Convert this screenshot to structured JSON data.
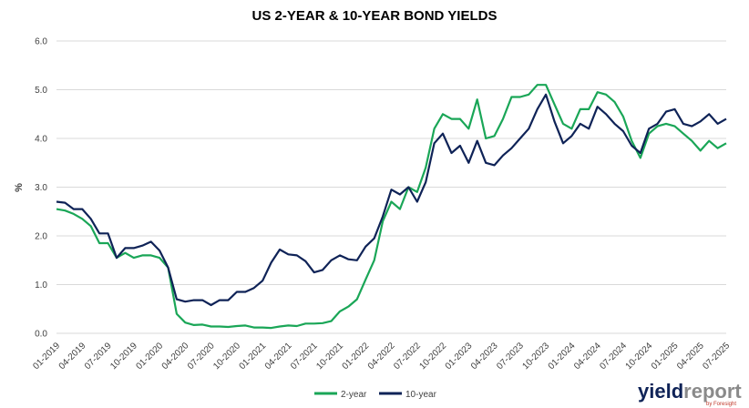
{
  "chart_data": {
    "type": "line",
    "title": "US 2-YEAR & 10-YEAR BOND YIELDS",
    "ylabel": "%",
    "xlabel": "",
    "ylim": [
      0,
      6
    ],
    "yticks": [
      "0.0",
      "1.0",
      "2.0",
      "3.0",
      "4.0",
      "5.0",
      "6.0"
    ],
    "xlim": [
      "2019-01",
      "2025-07"
    ],
    "xticks": [
      "01-2019",
      "04-2019",
      "07-2019",
      "10-2019",
      "01-2020",
      "04-2020",
      "07-2020",
      "10-2020",
      "01-2021",
      "04-2021",
      "07-2021",
      "10-2021",
      "01-2022",
      "04-2022",
      "07-2022",
      "10-2022",
      "01-2023",
      "04-2023",
      "07-2023",
      "10-2023",
      "01-2024",
      "04-2024",
      "07-2024",
      "10-2024",
      "01-2025",
      "04-2025",
      "07-2025"
    ],
    "grid": true,
    "legend": "bottom-center",
    "series": [
      {
        "name": "2-year",
        "color": "#1aa657",
        "points": [
          [
            "2019-01",
            2.55
          ],
          [
            "2019-02",
            2.52
          ],
          [
            "2019-03",
            2.45
          ],
          [
            "2019-04",
            2.35
          ],
          [
            "2019-05",
            2.2
          ],
          [
            "2019-06",
            1.85
          ],
          [
            "2019-07",
            1.85
          ],
          [
            "2019-08",
            1.55
          ],
          [
            "2019-09",
            1.65
          ],
          [
            "2019-10",
            1.55
          ],
          [
            "2019-11",
            1.6
          ],
          [
            "2019-12",
            1.6
          ],
          [
            "2020-01",
            1.55
          ],
          [
            "2020-02",
            1.35
          ],
          [
            "2020-03",
            0.4
          ],
          [
            "2020-04",
            0.22
          ],
          [
            "2020-05",
            0.17
          ],
          [
            "2020-06",
            0.18
          ],
          [
            "2020-07",
            0.14
          ],
          [
            "2020-08",
            0.14
          ],
          [
            "2020-09",
            0.13
          ],
          [
            "2020-10",
            0.15
          ],
          [
            "2020-11",
            0.16
          ],
          [
            "2020-12",
            0.12
          ],
          [
            "2021-01",
            0.12
          ],
          [
            "2021-02",
            0.11
          ],
          [
            "2021-03",
            0.14
          ],
          [
            "2021-04",
            0.16
          ],
          [
            "2021-05",
            0.15
          ],
          [
            "2021-06",
            0.2
          ],
          [
            "2021-07",
            0.2
          ],
          [
            "2021-08",
            0.21
          ],
          [
            "2021-09",
            0.25
          ],
          [
            "2021-10",
            0.45
          ],
          [
            "2021-11",
            0.55
          ],
          [
            "2021-12",
            0.7
          ],
          [
            "2022-01",
            1.1
          ],
          [
            "2022-02",
            1.5
          ],
          [
            "2022-03",
            2.3
          ],
          [
            "2022-04",
            2.7
          ],
          [
            "2022-05",
            2.55
          ],
          [
            "2022-06",
            3.0
          ],
          [
            "2022-07",
            2.9
          ],
          [
            "2022-08",
            3.4
          ],
          [
            "2022-09",
            4.2
          ],
          [
            "2022-10",
            4.5
          ],
          [
            "2022-11",
            4.4
          ],
          [
            "2022-12",
            4.4
          ],
          [
            "2023-01",
            4.2
          ],
          [
            "2023-02",
            4.8
          ],
          [
            "2023-03",
            4.0
          ],
          [
            "2023-04",
            4.05
          ],
          [
            "2023-05",
            4.4
          ],
          [
            "2023-06",
            4.85
          ],
          [
            "2023-07",
            4.85
          ],
          [
            "2023-08",
            4.9
          ],
          [
            "2023-09",
            5.1
          ],
          [
            "2023-10",
            5.1
          ],
          [
            "2023-11",
            4.7
          ],
          [
            "2023-12",
            4.3
          ],
          [
            "2024-01",
            4.2
          ],
          [
            "2024-02",
            4.6
          ],
          [
            "2024-03",
            4.6
          ],
          [
            "2024-04",
            4.95
          ],
          [
            "2024-05",
            4.9
          ],
          [
            "2024-06",
            4.75
          ],
          [
            "2024-07",
            4.45
          ],
          [
            "2024-08",
            3.95
          ],
          [
            "2024-09",
            3.6
          ],
          [
            "2024-10",
            4.1
          ],
          [
            "2024-11",
            4.25
          ],
          [
            "2024-12",
            4.3
          ],
          [
            "2025-01",
            4.25
          ],
          [
            "2025-02",
            4.1
          ],
          [
            "2025-03",
            3.95
          ],
          [
            "2025-04",
            3.75
          ],
          [
            "2025-05",
            3.95
          ],
          [
            "2025-06",
            3.8
          ],
          [
            "2025-07",
            3.9
          ]
        ]
      },
      {
        "name": "10-year",
        "color": "#0f2357",
        "points": [
          [
            "2019-01",
            2.7
          ],
          [
            "2019-02",
            2.68
          ],
          [
            "2019-03",
            2.55
          ],
          [
            "2019-04",
            2.55
          ],
          [
            "2019-05",
            2.35
          ],
          [
            "2019-06",
            2.05
          ],
          [
            "2019-07",
            2.05
          ],
          [
            "2019-08",
            1.55
          ],
          [
            "2019-09",
            1.75
          ],
          [
            "2019-10",
            1.75
          ],
          [
            "2019-11",
            1.8
          ],
          [
            "2019-12",
            1.88
          ],
          [
            "2020-01",
            1.7
          ],
          [
            "2020-02",
            1.35
          ],
          [
            "2020-03",
            0.7
          ],
          [
            "2020-04",
            0.65
          ],
          [
            "2020-05",
            0.68
          ],
          [
            "2020-06",
            0.68
          ],
          [
            "2020-07",
            0.58
          ],
          [
            "2020-08",
            0.68
          ],
          [
            "2020-09",
            0.68
          ],
          [
            "2020-10",
            0.85
          ],
          [
            "2020-11",
            0.85
          ],
          [
            "2020-12",
            0.93
          ],
          [
            "2021-01",
            1.08
          ],
          [
            "2021-02",
            1.45
          ],
          [
            "2021-03",
            1.72
          ],
          [
            "2021-04",
            1.62
          ],
          [
            "2021-05",
            1.6
          ],
          [
            "2021-06",
            1.48
          ],
          [
            "2021-07",
            1.25
          ],
          [
            "2021-08",
            1.3
          ],
          [
            "2021-09",
            1.5
          ],
          [
            "2021-10",
            1.6
          ],
          [
            "2021-11",
            1.52
          ],
          [
            "2021-12",
            1.5
          ],
          [
            "2022-01",
            1.78
          ],
          [
            "2022-02",
            1.95
          ],
          [
            "2022-03",
            2.4
          ],
          [
            "2022-04",
            2.95
          ],
          [
            "2022-05",
            2.85
          ],
          [
            "2022-06",
            3.0
          ],
          [
            "2022-07",
            2.7
          ],
          [
            "2022-08",
            3.1
          ],
          [
            "2022-09",
            3.9
          ],
          [
            "2022-10",
            4.1
          ],
          [
            "2022-11",
            3.7
          ],
          [
            "2022-12",
            3.85
          ],
          [
            "2023-01",
            3.5
          ],
          [
            "2023-02",
            3.95
          ],
          [
            "2023-03",
            3.5
          ],
          [
            "2023-04",
            3.45
          ],
          [
            "2023-05",
            3.65
          ],
          [
            "2023-06",
            3.8
          ],
          [
            "2023-07",
            4.0
          ],
          [
            "2023-08",
            4.2
          ],
          [
            "2023-09",
            4.6
          ],
          [
            "2023-10",
            4.9
          ],
          [
            "2023-11",
            4.35
          ],
          [
            "2023-12",
            3.9
          ],
          [
            "2024-01",
            4.05
          ],
          [
            "2024-02",
            4.3
          ],
          [
            "2024-03",
            4.2
          ],
          [
            "2024-04",
            4.65
          ],
          [
            "2024-05",
            4.5
          ],
          [
            "2024-06",
            4.3
          ],
          [
            "2024-07",
            4.15
          ],
          [
            "2024-08",
            3.85
          ],
          [
            "2024-09",
            3.7
          ],
          [
            "2024-10",
            4.2
          ],
          [
            "2024-11",
            4.3
          ],
          [
            "2024-12",
            4.55
          ],
          [
            "2025-01",
            4.6
          ],
          [
            "2025-02",
            4.3
          ],
          [
            "2025-03",
            4.25
          ],
          [
            "2025-04",
            4.35
          ],
          [
            "2025-05",
            4.5
          ],
          [
            "2025-06",
            4.3
          ],
          [
            "2025-07",
            4.4
          ]
        ]
      }
    ]
  },
  "branding": {
    "name_dark": "yield",
    "name_light": "report",
    "tagline": "by Foresight",
    "dark_color": "#0f2357",
    "light_color": "#8a8a8a"
  }
}
